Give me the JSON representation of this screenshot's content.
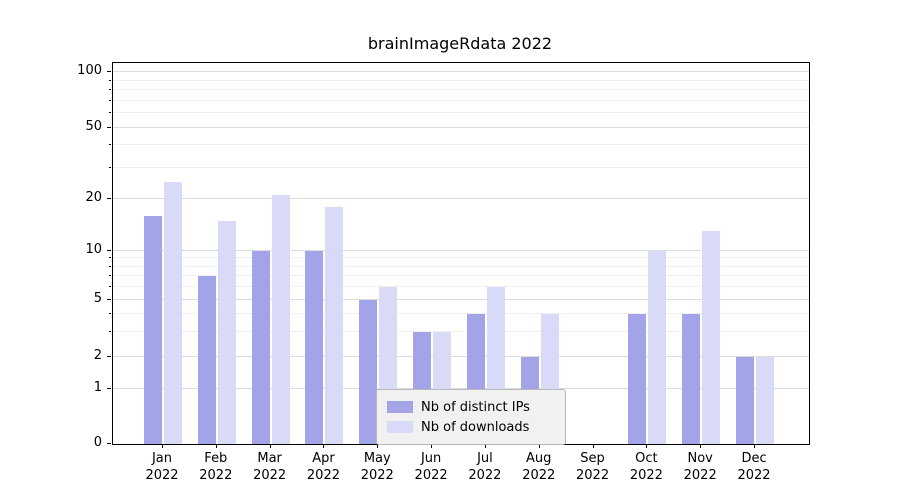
{
  "chart_data": {
    "type": "bar",
    "title": "brainImageRdata 2022",
    "x_months": [
      "Jan",
      "Feb",
      "Mar",
      "Apr",
      "May",
      "Jun",
      "Jul",
      "Aug",
      "Sep",
      "Oct",
      "Nov",
      "Dec"
    ],
    "x_year": "2022",
    "series": [
      {
        "name": "Nb of distinct IPs",
        "color": "#a3a3e8",
        "values": [
          16,
          7,
          10,
          10,
          5,
          3,
          4,
          2,
          0,
          4,
          4,
          2
        ]
      },
      {
        "name": "Nb of downloads",
        "color": "#d9d9f8",
        "values": [
          25,
          15,
          21,
          18,
          6,
          3,
          6,
          4,
          0,
          10,
          13,
          2
        ]
      }
    ],
    "y_axis": {
      "scale": "symlog",
      "major_ticks": [
        0,
        1,
        2,
        5,
        10,
        20,
        50,
        100
      ],
      "minor_ticks": [
        3,
        4,
        6,
        7,
        8,
        9,
        30,
        40,
        60,
        70,
        80,
        90
      ],
      "range": [
        0,
        100
      ]
    },
    "grid": true,
    "legend_position": "bottom-center"
  },
  "colors": {
    "background": "#ffffff",
    "axis": "#000000",
    "grid_major": "#dcdcdc",
    "grid_minor": "#efefef",
    "legend_bg": "#f1f1f1",
    "legend_border": "#b8b8b8"
  }
}
